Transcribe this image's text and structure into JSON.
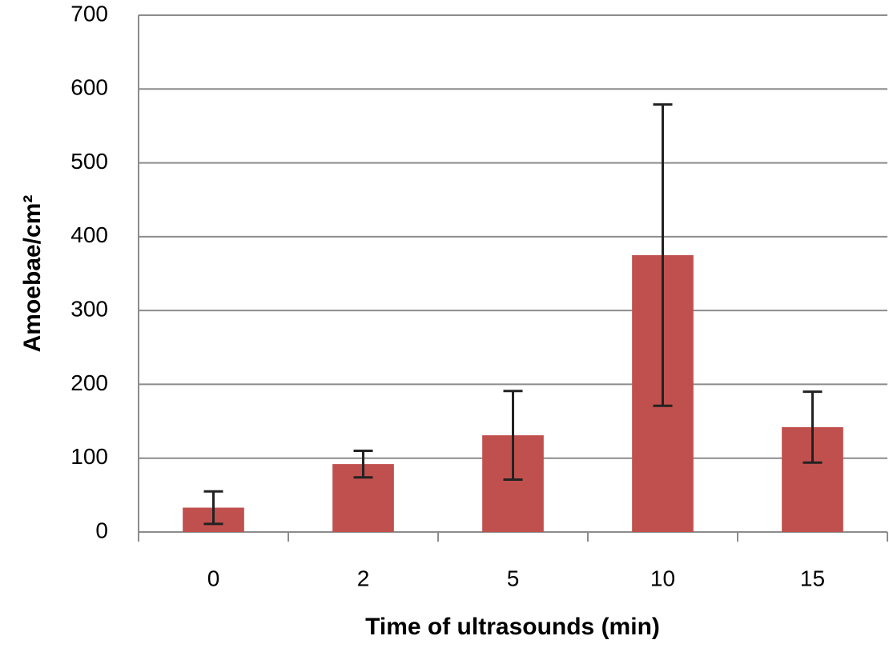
{
  "chart_data": {
    "type": "bar",
    "x_label": "Time of ultrasounds (min)",
    "y_label": "Amoebae/cm²",
    "categories": [
      "0",
      "2",
      "5",
      "10",
      "15"
    ],
    "values": [
      33,
      92,
      131,
      375,
      142
    ],
    "errors": [
      22,
      18,
      60,
      204,
      48
    ],
    "color": "#c0504d",
    "ylim": [
      0,
      700
    ],
    "yticks": [
      0,
      100,
      200,
      300,
      400,
      500,
      600,
      700
    ],
    "grid": true
  }
}
